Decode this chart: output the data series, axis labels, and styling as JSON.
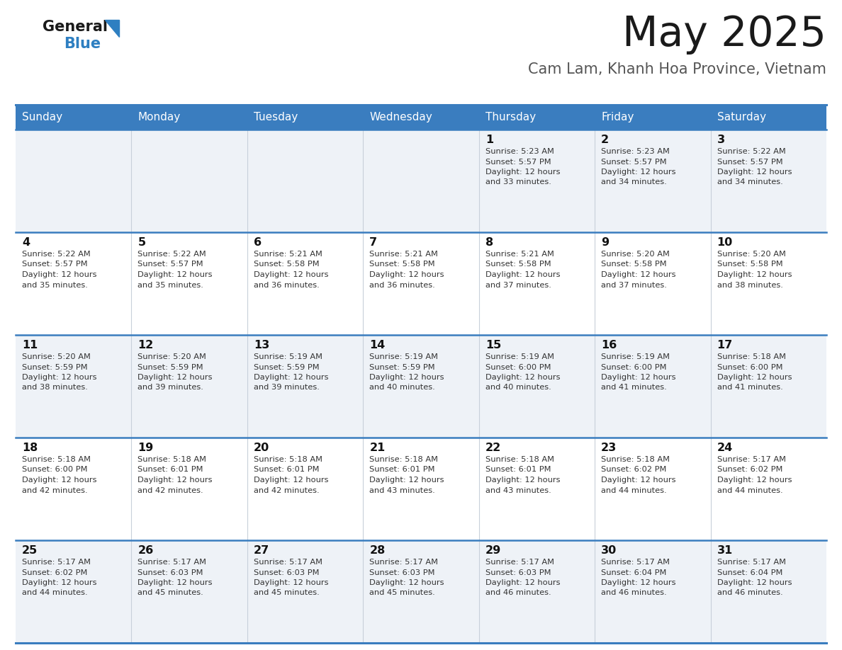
{
  "title": "May 2025",
  "subtitle": "Cam Lam, Khanh Hoa Province, Vietnam",
  "header_bg": "#3a7dbf",
  "header_text_color": "#ffffff",
  "row_bg_odd": "#eef2f7",
  "row_bg_even": "#ffffff",
  "cell_text_color": "#333333",
  "day_number_color": "#1a1a1a",
  "divider_color": "#3a7dbf",
  "days_of_week": [
    "Sunday",
    "Monday",
    "Tuesday",
    "Wednesday",
    "Thursday",
    "Friday",
    "Saturday"
  ],
  "weeks": [
    [
      {
        "day": "",
        "sunrise": "",
        "sunset": "",
        "daylight": ""
      },
      {
        "day": "",
        "sunrise": "",
        "sunset": "",
        "daylight": ""
      },
      {
        "day": "",
        "sunrise": "",
        "sunset": "",
        "daylight": ""
      },
      {
        "day": "",
        "sunrise": "",
        "sunset": "",
        "daylight": ""
      },
      {
        "day": "1",
        "sunrise": "5:23 AM",
        "sunset": "5:57 PM",
        "daylight": "12 hours and 33 minutes."
      },
      {
        "day": "2",
        "sunrise": "5:23 AM",
        "sunset": "5:57 PM",
        "daylight": "12 hours and 34 minutes."
      },
      {
        "day": "3",
        "sunrise": "5:22 AM",
        "sunset": "5:57 PM",
        "daylight": "12 hours and 34 minutes."
      }
    ],
    [
      {
        "day": "4",
        "sunrise": "5:22 AM",
        "sunset": "5:57 PM",
        "daylight": "12 hours and 35 minutes."
      },
      {
        "day": "5",
        "sunrise": "5:22 AM",
        "sunset": "5:57 PM",
        "daylight": "12 hours and 35 minutes."
      },
      {
        "day": "6",
        "sunrise": "5:21 AM",
        "sunset": "5:58 PM",
        "daylight": "12 hours and 36 minutes."
      },
      {
        "day": "7",
        "sunrise": "5:21 AM",
        "sunset": "5:58 PM",
        "daylight": "12 hours and 36 minutes."
      },
      {
        "day": "8",
        "sunrise": "5:21 AM",
        "sunset": "5:58 PM",
        "daylight": "12 hours and 37 minutes."
      },
      {
        "day": "9",
        "sunrise": "5:20 AM",
        "sunset": "5:58 PM",
        "daylight": "12 hours and 37 minutes."
      },
      {
        "day": "10",
        "sunrise": "5:20 AM",
        "sunset": "5:58 PM",
        "daylight": "12 hours and 38 minutes."
      }
    ],
    [
      {
        "day": "11",
        "sunrise": "5:20 AM",
        "sunset": "5:59 PM",
        "daylight": "12 hours and 38 minutes."
      },
      {
        "day": "12",
        "sunrise": "5:20 AM",
        "sunset": "5:59 PM",
        "daylight": "12 hours and 39 minutes."
      },
      {
        "day": "13",
        "sunrise": "5:19 AM",
        "sunset": "5:59 PM",
        "daylight": "12 hours and 39 minutes."
      },
      {
        "day": "14",
        "sunrise": "5:19 AM",
        "sunset": "5:59 PM",
        "daylight": "12 hours and 40 minutes."
      },
      {
        "day": "15",
        "sunrise": "5:19 AM",
        "sunset": "6:00 PM",
        "daylight": "12 hours and 40 minutes."
      },
      {
        "day": "16",
        "sunrise": "5:19 AM",
        "sunset": "6:00 PM",
        "daylight": "12 hours and 41 minutes."
      },
      {
        "day": "17",
        "sunrise": "5:18 AM",
        "sunset": "6:00 PM",
        "daylight": "12 hours and 41 minutes."
      }
    ],
    [
      {
        "day": "18",
        "sunrise": "5:18 AM",
        "sunset": "6:00 PM",
        "daylight": "12 hours and 42 minutes."
      },
      {
        "day": "19",
        "sunrise": "5:18 AM",
        "sunset": "6:01 PM",
        "daylight": "12 hours and 42 minutes."
      },
      {
        "day": "20",
        "sunrise": "5:18 AM",
        "sunset": "6:01 PM",
        "daylight": "12 hours and 42 minutes."
      },
      {
        "day": "21",
        "sunrise": "5:18 AM",
        "sunset": "6:01 PM",
        "daylight": "12 hours and 43 minutes."
      },
      {
        "day": "22",
        "sunrise": "5:18 AM",
        "sunset": "6:01 PM",
        "daylight": "12 hours and 43 minutes."
      },
      {
        "day": "23",
        "sunrise": "5:18 AM",
        "sunset": "6:02 PM",
        "daylight": "12 hours and 44 minutes."
      },
      {
        "day": "24",
        "sunrise": "5:17 AM",
        "sunset": "6:02 PM",
        "daylight": "12 hours and 44 minutes."
      }
    ],
    [
      {
        "day": "25",
        "sunrise": "5:17 AM",
        "sunset": "6:02 PM",
        "daylight": "12 hours and 44 minutes."
      },
      {
        "day": "26",
        "sunrise": "5:17 AM",
        "sunset": "6:03 PM",
        "daylight": "12 hours and 45 minutes."
      },
      {
        "day": "27",
        "sunrise": "5:17 AM",
        "sunset": "6:03 PM",
        "daylight": "12 hours and 45 minutes."
      },
      {
        "day": "28",
        "sunrise": "5:17 AM",
        "sunset": "6:03 PM",
        "daylight": "12 hours and 45 minutes."
      },
      {
        "day": "29",
        "sunrise": "5:17 AM",
        "sunset": "6:03 PM",
        "daylight": "12 hours and 46 minutes."
      },
      {
        "day": "30",
        "sunrise": "5:17 AM",
        "sunset": "6:04 PM",
        "daylight": "12 hours and 46 minutes."
      },
      {
        "day": "31",
        "sunrise": "5:17 AM",
        "sunset": "6:04 PM",
        "daylight": "12 hours and 46 minutes."
      }
    ]
  ],
  "logo_text_general": "General",
  "logo_text_blue": "Blue",
  "logo_triangle_color": "#2e7fc1",
  "fig_width": 11.88,
  "fig_height": 9.18,
  "dpi": 100
}
